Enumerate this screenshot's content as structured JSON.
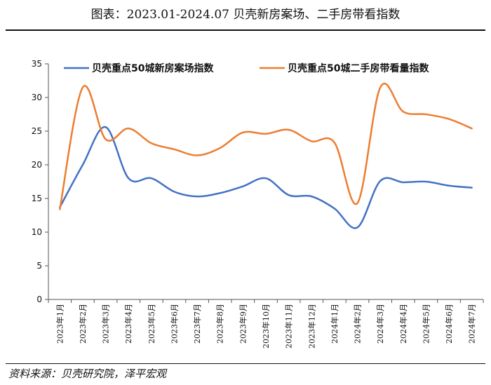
{
  "title": "图表：2023.01-2024.07 贝壳新房案场、二手房带看指数",
  "source": "资料来源：贝壳研究院，泽平宏观",
  "colors": {
    "series1": "#4472C4",
    "series2": "#ED7D31",
    "axis": "#555555"
  },
  "chart_data": {
    "type": "line",
    "categories": [
      "2023年1月",
      "2023年2月",
      "2023年3月",
      "2023年4月",
      "2023年5月",
      "2023年6月",
      "2023年7月",
      "2023年8月",
      "2023年9月",
      "2023年10月",
      "2023年11月",
      "2023年12月",
      "2024年1月",
      "2024年2月",
      "2024年3月",
      "2024年4月",
      "2024年5月",
      "2024年6月",
      "2024年7月"
    ],
    "series": [
      {
        "name": "贝壳重点50城新房案场指数",
        "values": [
          13.7,
          20.0,
          25.6,
          18.0,
          18.0,
          16.0,
          15.3,
          15.8,
          16.8,
          18.0,
          15.5,
          15.3,
          13.5,
          10.7,
          17.6,
          17.4,
          17.5,
          16.9,
          16.6
        ]
      },
      {
        "name": "贝壳重点50城二手房带看量指数",
        "values": [
          13.4,
          31.5,
          23.8,
          25.4,
          23.2,
          22.3,
          21.4,
          22.5,
          24.8,
          24.6,
          25.2,
          23.5,
          23.3,
          14.3,
          31.5,
          27.9,
          27.5,
          26.8,
          25.4
        ]
      }
    ],
    "ylim": [
      0,
      35
    ],
    "yticks": [
      0,
      5,
      10,
      15,
      20,
      25,
      30,
      35
    ],
    "grid": false,
    "legend_position": "top"
  }
}
